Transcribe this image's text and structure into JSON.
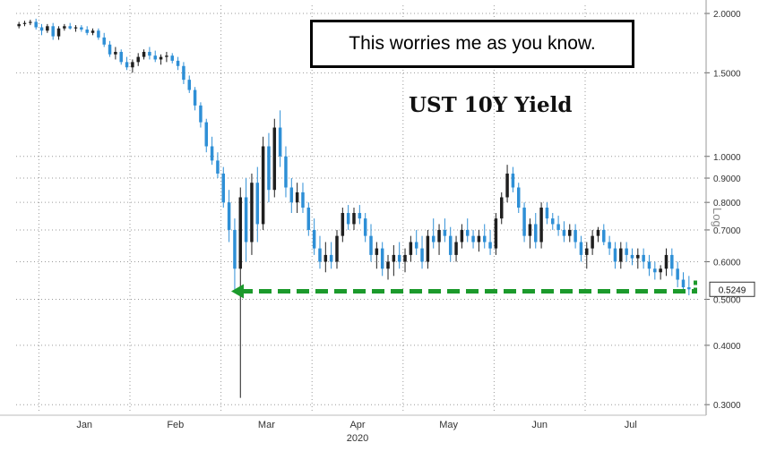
{
  "annotation": "This worries me as you know.",
  "colors": {
    "up": "#1f1f1f",
    "down": "#2e8fd6",
    "grid": "#9a9a9a",
    "arrow": "#1c9a2c"
  },
  "chart_data": {
    "type": "candlestick",
    "title": "UST 10Y Yield",
    "scale": "log",
    "scale_label": "Log",
    "ylim": [
      0.29,
      2.08
    ],
    "y_ticks": [
      {
        "value": 2.0,
        "label": "2.0000"
      },
      {
        "value": 1.5,
        "label": "1.5000"
      },
      {
        "value": 1.0,
        "label": "1.0000"
      },
      {
        "value": 0.9,
        "label": "0.9000"
      },
      {
        "value": 0.8,
        "label": "0.8000"
      },
      {
        "value": 0.7,
        "label": "0.7000"
      },
      {
        "value": 0.6,
        "label": "0.6000"
      },
      {
        "value": 0.5,
        "label": "0.5000"
      },
      {
        "value": 0.4,
        "label": "0.4000"
      },
      {
        "value": 0.3,
        "label": "0.3000"
      }
    ],
    "x_year": "2020",
    "x_months": [
      "Jan",
      "Feb",
      "Mar",
      "Apr",
      "May",
      "Jun",
      "Jul"
    ],
    "last_value": 0.5249,
    "last_value_label": "0.5249",
    "support_level": 0.52,
    "grid": true,
    "candles": [
      [
        1.88,
        1.92,
        1.86,
        1.9
      ],
      [
        1.9,
        1.93,
        1.88,
        1.91
      ],
      [
        1.91,
        1.94,
        1.89,
        1.92
      ],
      [
        1.92,
        1.95,
        1.85,
        1.87
      ],
      [
        1.87,
        1.9,
        1.8,
        1.84
      ],
      [
        1.84,
        1.9,
        1.82,
        1.88
      ],
      [
        1.88,
        1.91,
        1.76,
        1.79
      ],
      [
        1.79,
        1.88,
        1.76,
        1.86
      ],
      [
        1.86,
        1.9,
        1.84,
        1.88
      ],
      [
        1.88,
        1.91,
        1.85,
        1.86
      ],
      [
        1.86,
        1.89,
        1.83,
        1.87
      ],
      [
        1.87,
        1.89,
        1.83,
        1.85
      ],
      [
        1.85,
        1.88,
        1.8,
        1.82
      ],
      [
        1.82,
        1.86,
        1.8,
        1.84
      ],
      [
        1.84,
        1.86,
        1.76,
        1.78
      ],
      [
        1.78,
        1.82,
        1.7,
        1.72
      ],
      [
        1.72,
        1.75,
        1.62,
        1.64
      ],
      [
        1.64,
        1.7,
        1.6,
        1.66
      ],
      [
        1.66,
        1.68,
        1.56,
        1.58
      ],
      [
        1.58,
        1.62,
        1.52,
        1.54
      ],
      [
        1.54,
        1.6,
        1.5,
        1.58
      ],
      [
        1.58,
        1.65,
        1.55,
        1.62
      ],
      [
        1.62,
        1.68,
        1.6,
        1.66
      ],
      [
        1.66,
        1.7,
        1.6,
        1.63
      ],
      [
        1.63,
        1.67,
        1.58,
        1.6
      ],
      [
        1.6,
        1.64,
        1.56,
        1.62
      ],
      [
        1.62,
        1.66,
        1.58,
        1.63
      ],
      [
        1.63,
        1.65,
        1.57,
        1.59
      ],
      [
        1.59,
        1.62,
        1.52,
        1.55
      ],
      [
        1.55,
        1.58,
        1.42,
        1.45
      ],
      [
        1.45,
        1.48,
        1.36,
        1.38
      ],
      [
        1.38,
        1.4,
        1.25,
        1.28
      ],
      [
        1.28,
        1.3,
        1.15,
        1.18
      ],
      [
        1.18,
        1.2,
        1.02,
        1.05
      ],
      [
        1.05,
        1.1,
        0.96,
        0.98
      ],
      [
        0.98,
        1.02,
        0.9,
        0.92
      ],
      [
        0.92,
        0.95,
        0.78,
        0.8
      ],
      [
        0.8,
        0.85,
        0.66,
        0.7
      ],
      [
        0.7,
        0.74,
        0.52,
        0.58
      ],
      [
        0.58,
        0.86,
        0.31,
        0.82
      ],
      [
        0.82,
        0.9,
        0.6,
        0.66
      ],
      [
        0.66,
        0.92,
        0.62,
        0.88
      ],
      [
        0.88,
        0.95,
        0.66,
        0.72
      ],
      [
        0.72,
        1.1,
        0.7,
        1.05
      ],
      [
        1.05,
        1.12,
        0.8,
        0.85
      ],
      [
        0.85,
        1.2,
        0.82,
        1.15
      ],
      [
        1.15,
        1.25,
        0.95,
        1.0
      ],
      [
        1.0,
        1.05,
        0.82,
        0.86
      ],
      [
        0.86,
        0.9,
        0.76,
        0.8
      ],
      [
        0.8,
        0.88,
        0.76,
        0.84
      ],
      [
        0.84,
        0.88,
        0.76,
        0.78
      ],
      [
        0.78,
        0.8,
        0.68,
        0.7
      ],
      [
        0.7,
        0.74,
        0.62,
        0.64
      ],
      [
        0.64,
        0.68,
        0.58,
        0.6
      ],
      [
        0.6,
        0.66,
        0.57,
        0.62
      ],
      [
        0.62,
        0.66,
        0.58,
        0.6
      ],
      [
        0.6,
        0.7,
        0.58,
        0.68
      ],
      [
        0.68,
        0.78,
        0.66,
        0.76
      ],
      [
        0.76,
        0.79,
        0.7,
        0.72
      ],
      [
        0.72,
        0.78,
        0.7,
        0.76
      ],
      [
        0.76,
        0.79,
        0.72,
        0.74
      ],
      [
        0.74,
        0.76,
        0.66,
        0.68
      ],
      [
        0.68,
        0.72,
        0.6,
        0.62
      ],
      [
        0.62,
        0.66,
        0.58,
        0.64
      ],
      [
        0.64,
        0.66,
        0.56,
        0.58
      ],
      [
        0.58,
        0.62,
        0.55,
        0.6
      ],
      [
        0.6,
        0.65,
        0.56,
        0.62
      ],
      [
        0.62,
        0.66,
        0.58,
        0.6
      ],
      [
        0.6,
        0.64,
        0.57,
        0.62
      ],
      [
        0.62,
        0.68,
        0.6,
        0.66
      ],
      [
        0.66,
        0.7,
        0.62,
        0.64
      ],
      [
        0.64,
        0.68,
        0.58,
        0.6
      ],
      [
        0.6,
        0.7,
        0.58,
        0.68
      ],
      [
        0.68,
        0.74,
        0.64,
        0.66
      ],
      [
        0.66,
        0.72,
        0.62,
        0.7
      ],
      [
        0.7,
        0.74,
        0.66,
        0.68
      ],
      [
        0.68,
        0.71,
        0.6,
        0.62
      ],
      [
        0.62,
        0.68,
        0.6,
        0.66
      ],
      [
        0.66,
        0.72,
        0.64,
        0.7
      ],
      [
        0.7,
        0.74,
        0.66,
        0.68
      ],
      [
        0.68,
        0.7,
        0.64,
        0.66
      ],
      [
        0.66,
        0.7,
        0.63,
        0.68
      ],
      [
        0.68,
        0.72,
        0.64,
        0.66
      ],
      [
        0.66,
        0.7,
        0.62,
        0.64
      ],
      [
        0.64,
        0.76,
        0.62,
        0.74
      ],
      [
        0.74,
        0.84,
        0.72,
        0.82
      ],
      [
        0.82,
        0.96,
        0.8,
        0.92
      ],
      [
        0.92,
        0.95,
        0.84,
        0.86
      ],
      [
        0.86,
        0.88,
        0.76,
        0.78
      ],
      [
        0.78,
        0.8,
        0.66,
        0.68
      ],
      [
        0.68,
        0.74,
        0.64,
        0.72
      ],
      [
        0.72,
        0.76,
        0.64,
        0.66
      ],
      [
        0.66,
        0.8,
        0.64,
        0.78
      ],
      [
        0.78,
        0.8,
        0.72,
        0.74
      ],
      [
        0.74,
        0.76,
        0.7,
        0.72
      ],
      [
        0.72,
        0.75,
        0.68,
        0.7
      ],
      [
        0.7,
        0.73,
        0.66,
        0.68
      ],
      [
        0.68,
        0.72,
        0.66,
        0.7
      ],
      [
        0.7,
        0.72,
        0.64,
        0.66
      ],
      [
        0.66,
        0.68,
        0.6,
        0.62
      ],
      [
        0.62,
        0.66,
        0.58,
        0.64
      ],
      [
        0.64,
        0.7,
        0.62,
        0.68
      ],
      [
        0.68,
        0.71,
        0.66,
        0.7
      ],
      [
        0.7,
        0.72,
        0.65,
        0.66
      ],
      [
        0.66,
        0.68,
        0.62,
        0.64
      ],
      [
        0.64,
        0.66,
        0.58,
        0.6
      ],
      [
        0.6,
        0.66,
        0.58,
        0.64
      ],
      [
        0.64,
        0.66,
        0.6,
        0.62
      ],
      [
        0.62,
        0.64,
        0.59,
        0.61
      ],
      [
        0.61,
        0.64,
        0.58,
        0.62
      ],
      [
        0.62,
        0.64,
        0.58,
        0.6
      ],
      [
        0.6,
        0.62,
        0.56,
        0.58
      ],
      [
        0.58,
        0.6,
        0.55,
        0.57
      ],
      [
        0.57,
        0.59,
        0.55,
        0.58
      ],
      [
        0.58,
        0.64,
        0.56,
        0.62
      ],
      [
        0.62,
        0.64,
        0.56,
        0.58
      ],
      [
        0.58,
        0.6,
        0.53,
        0.55
      ],
      [
        0.55,
        0.57,
        0.52,
        0.53
      ],
      [
        0.53,
        0.56,
        0.51,
        0.5249
      ]
    ]
  }
}
